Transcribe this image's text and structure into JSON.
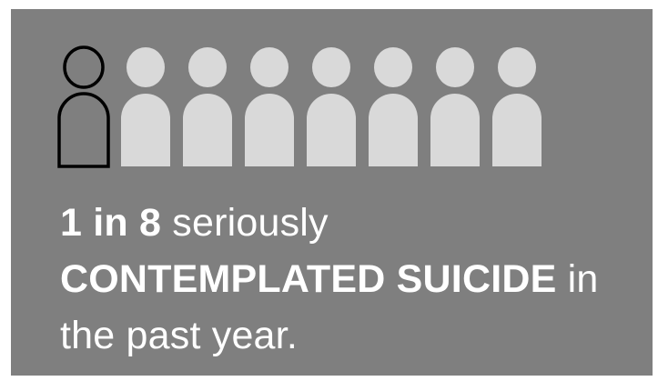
{
  "infographic": {
    "figure_count": 8,
    "highlighted_count": 1,
    "colors": {
      "panel": "#7f7f7f",
      "highlight_outline": "#000000",
      "figure_fill": "#d9d9d9",
      "text": "#ffffff"
    },
    "icon": "person-icon",
    "statement": {
      "ratio": "1 in 8",
      "text_after_ratio": " seriously",
      "emphasis": "CONTEMPLATED SUICIDE",
      "text_after_emphasis": " in",
      "ending": "the past year."
    }
  }
}
